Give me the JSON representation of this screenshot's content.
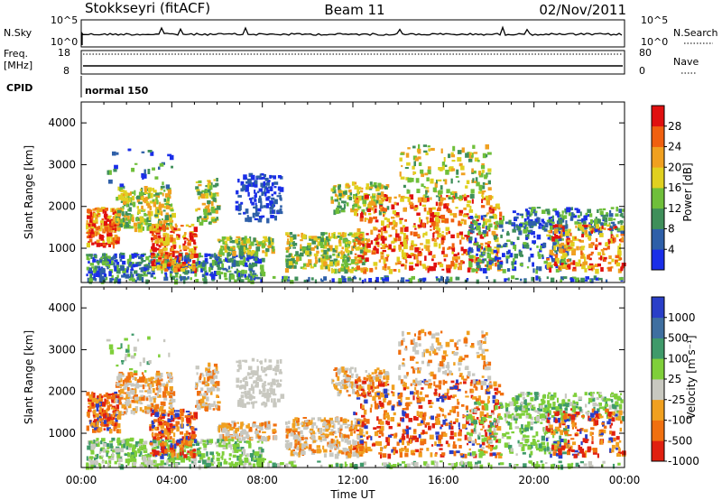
{
  "header": {
    "station": "Stokkseyri (fitACF)",
    "beam": "Beam 11",
    "date": "02/Nov/2011"
  },
  "summary": {
    "nsky_label": "N.Sky",
    "nsky_tick_top": "10^5",
    "nsky_tick_bottom": "10^0",
    "nsearch_label": "N.Search",
    "nsearch_tick_top": "10^5",
    "nsearch_tick_bottom": "10^0",
    "freq_label_1": "Freq.",
    "freq_label_2": "[MHz]",
    "freq_tick_top": "18",
    "freq_tick_bottom": "8",
    "nave_label": "Nave",
    "nave_tick_top": "80",
    "nave_tick_bottom": "0",
    "cpid_label": "CPID",
    "cpid_value": "normal 150"
  },
  "chart_data": [
    {
      "type": "heatmap",
      "name": "power",
      "ylabel": "Slant Range [km]",
      "colorbar_label": "Power [dB]",
      "xlim": [
        0,
        24
      ],
      "ylim": [
        180,
        4500
      ],
      "ytick_labels": [
        "1000",
        "2000",
        "3000",
        "4000"
      ],
      "colorbar_ticks": [
        "4",
        "8",
        "12",
        "16",
        "20",
        "24",
        "28"
      ],
      "colors": [
        "#1a2ee8",
        "#2e5fa8",
        "#3f8f5a",
        "#6fbf3a",
        "#e0d020",
        "#f0a020",
        "#f06010",
        "#e01010"
      ]
    },
    {
      "type": "heatmap",
      "name": "velocity",
      "ylabel": "Slant Range [km]",
      "xlabel": "Time UT",
      "colorbar_label": "Velocity [m s⁻¹]",
      "xlim": [
        0,
        24
      ],
      "ylim": [
        180,
        4500
      ],
      "ytick_labels": [
        "1000",
        "2000",
        "3000",
        "4000"
      ],
      "xtick_labels": [
        "00:00",
        "04:00",
        "08:00",
        "12:00",
        "16:00",
        "20:00",
        "00:00"
      ],
      "colorbar_ticks": [
        "1000",
        "500",
        "100",
        "25",
        "-25",
        "-100",
        "-500",
        "-1000"
      ],
      "colors": [
        "#2a3fc8",
        "#3f6fa0",
        "#3f9a6a",
        "#7fcf3a",
        "#c8c8c0",
        "#f0a020",
        "#f07010",
        "#e02010"
      ]
    }
  ]
}
